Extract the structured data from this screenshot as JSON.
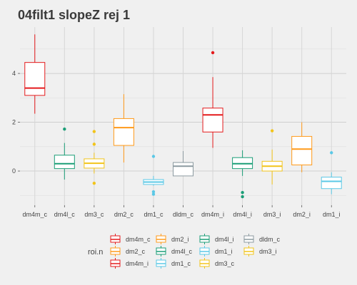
{
  "chart_data": {
    "type": "boxplot",
    "title": "04filt1 slopeZ rej 1",
    "xlabel": "",
    "ylabel": "",
    "ylim": [
      -1.4,
      5.9
    ],
    "y_ticks": [
      0,
      2,
      4
    ],
    "grid": true,
    "legend": {
      "title": "roi.n",
      "placement": "bottom",
      "entries": [
        {
          "label": "dm4m_c",
          "color": "#e41a1c"
        },
        {
          "label": "dm2_c",
          "color": "#ff9a1a"
        },
        {
          "label": "dm4m_i",
          "color": "#e41a1c"
        },
        {
          "label": "dm2_i",
          "color": "#ff9a1a"
        },
        {
          "label": "dm4l_c",
          "color": "#1b9e77"
        },
        {
          "label": "dm1_c",
          "color": "#5bc8e6"
        },
        {
          "label": "dm4l_i",
          "color": "#1b9e77"
        },
        {
          "label": "dm1_i",
          "color": "#5bc8e6"
        },
        {
          "label": "dm3_c",
          "color": "#f2c41a"
        },
        {
          "label": "dldm_c",
          "color": "#8c9aa0"
        },
        {
          "label": "dm3_i",
          "color": "#f2c41a"
        }
      ]
    },
    "categories": [
      "dm4m_c",
      "dm4l_c",
      "dm3_c",
      "dm2_c",
      "dm1_c",
      "dldm_c",
      "dm4m_i",
      "dm4l_i",
      "dm3_i",
      "dm2_i",
      "dm1_i"
    ],
    "boxes": [
      {
        "name": "dm4m_c",
        "color": "#e41a1c",
        "whisker_low": 2.35,
        "q1": 3.1,
        "median": 3.4,
        "q3": 4.45,
        "whisker_high": 5.6,
        "outliers": []
      },
      {
        "name": "dm4l_c",
        "color": "#1b9e77",
        "whisker_low": -0.35,
        "q1": 0.1,
        "median": 0.3,
        "q3": 0.65,
        "whisker_high": 1.15,
        "outliers": [
          1.72
        ]
      },
      {
        "name": "dm3_c",
        "color": "#f2c41a",
        "whisker_low": -0.1,
        "q1": 0.12,
        "median": 0.32,
        "q3": 0.5,
        "whisker_high": 0.75,
        "outliers": [
          1.62,
          1.1,
          -0.5
        ]
      },
      {
        "name": "dm2_c",
        "color": "#ff9a1a",
        "whisker_low": 0.35,
        "q1": 1.05,
        "median": 1.78,
        "q3": 2.15,
        "whisker_high": 3.15,
        "outliers": []
      },
      {
        "name": "dm1_c",
        "color": "#5bc8e6",
        "whisker_low": -0.6,
        "q1": -0.55,
        "median": -0.45,
        "q3": -0.35,
        "whisker_high": -0.2,
        "outliers": [
          0.6,
          -0.85,
          -0.95
        ]
      },
      {
        "name": "dldm_c",
        "color": "#8c9aa0",
        "whisker_low": -0.2,
        "q1": -0.2,
        "median": 0.2,
        "q3": 0.35,
        "whisker_high": 0.82,
        "outliers": []
      },
      {
        "name": "dm4m_i",
        "color": "#e41a1c",
        "whisker_low": 0.95,
        "q1": 1.6,
        "median": 2.3,
        "q3": 2.58,
        "whisker_high": 3.85,
        "outliers": [
          4.85
        ]
      },
      {
        "name": "dm4l_i",
        "color": "#1b9e77",
        "whisker_low": -0.2,
        "q1": 0.1,
        "median": 0.3,
        "q3": 0.55,
        "whisker_high": 0.85,
        "outliers": [
          -0.88,
          -1.05
        ]
      },
      {
        "name": "dm3_i",
        "color": "#f2c41a",
        "whisker_low": -0.55,
        "q1": 0.0,
        "median": 0.2,
        "q3": 0.4,
        "whisker_high": 0.88,
        "outliers": [
          1.65
        ]
      },
      {
        "name": "dm2_i",
        "color": "#ff9a1a",
        "whisker_low": -0.05,
        "q1": 0.25,
        "median": 0.9,
        "q3": 1.42,
        "whisker_high": 2.0,
        "outliers": []
      },
      {
        "name": "dm1_i",
        "color": "#5bc8e6",
        "whisker_low": -0.95,
        "q1": -0.72,
        "median": -0.42,
        "q3": -0.25,
        "whisker_high": -0.05,
        "outliers": [
          0.75
        ]
      }
    ]
  }
}
